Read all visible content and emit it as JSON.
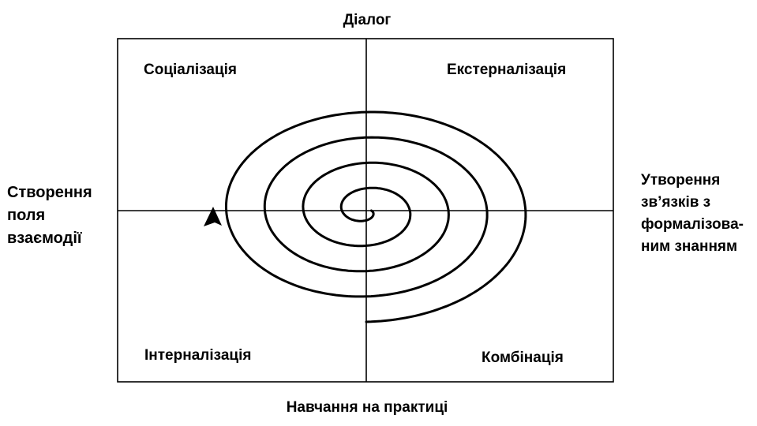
{
  "axes": {
    "top": "Діалог",
    "bottom": "Навчання на практиці",
    "left": [
      "Створення",
      "поля",
      "взаємодії"
    ],
    "right": [
      "Утворення",
      "зв’язків з",
      "формалізова-",
      "ним знанням"
    ]
  },
  "quadrants": {
    "top_left": "Соціалізація",
    "top_right": "Екстерналізація",
    "bottom_left": "Інтерналізація",
    "bottom_right": "Комбінація"
  },
  "colors": {
    "line": "#000000",
    "background": "#ffffff"
  }
}
